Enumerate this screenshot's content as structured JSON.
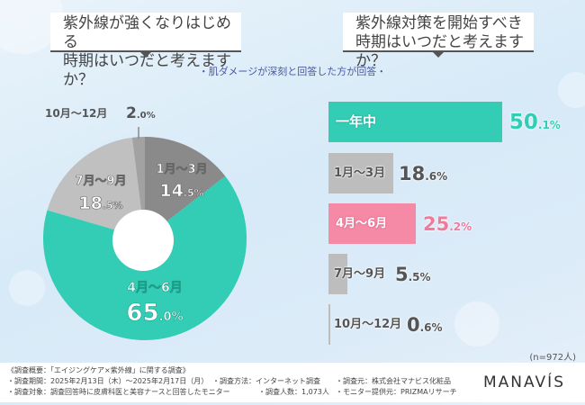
{
  "questions": {
    "left": [
      "紫外線が強くなりはじめる",
      "時期はいつだと考えますか？"
    ],
    "right": [
      "紫外線対策を開始すべき",
      "時期はいつだと考えますか？"
    ]
  },
  "subtitle": "・肌ダメージが深刻と回答した方が回答・",
  "chart_data": [
    {
      "type": "pie",
      "title": "紫外線が強くなりはじめる時期はいつだと考えますか？",
      "unit": "%",
      "slices": [
        {
          "label": "1月〜3月",
          "value": 14.5,
          "int": "14",
          "dec": ".5%",
          "color": "#8a8a8a"
        },
        {
          "label": "4月〜6月",
          "value": 65.0,
          "int": "65",
          "dec": ".0%",
          "color": "#33cdb5"
        },
        {
          "label": "7月〜9月",
          "value": 18.5,
          "int": "18",
          "dec": ".5%",
          "color": "#c0c0c0"
        },
        {
          "label": "10月〜12月",
          "value": 2.0,
          "int": "2",
          "dec": ".0%",
          "color": "#a2a2a2"
        }
      ]
    },
    {
      "type": "bar",
      "orientation": "horizontal",
      "title": "紫外線対策を開始すべき時期はいつだと考えますか？",
      "unit": "%",
      "categories": [
        "一年中",
        "1月〜3月",
        "4月〜6月",
        "7月〜9月",
        "10月〜12月"
      ],
      "values": [
        50.1,
        18.6,
        25.2,
        5.5,
        0.6
      ],
      "value_int": [
        "50",
        "18",
        "25",
        "5",
        "0"
      ],
      "value_dec": [
        ".1%",
        ".6%",
        ".2%",
        ".5%",
        ".6%"
      ],
      "colors": [
        "#33cdb5",
        "#bdbdbd",
        "#f48aa6",
        "#bdbdbd",
        "#bdbdbd"
      ],
      "value_colors": [
        "#33cdb5",
        "#555555",
        "#f07a9b",
        "#555555",
        "#555555"
      ]
    }
  ],
  "sample_note": "(n=972人)",
  "footer": {
    "overview": "《調査概要：「エイジングケア×紫外線」に関する調査》",
    "period": "・調査期間：2025年2月13日（木）〜2025年2月17日（月）",
    "method": "・調査方法：インターネット調査",
    "organizer": "・調査元：株式会社マナビス化粧品",
    "target": "・調査対象：調査回答時に皮膚科医と美容ナースと回答したモニター",
    "count": "・調査人数：1,073人",
    "provider": "・モニター提供元：PRIZMAリサーチ"
  },
  "logo": "MANAVÍS"
}
